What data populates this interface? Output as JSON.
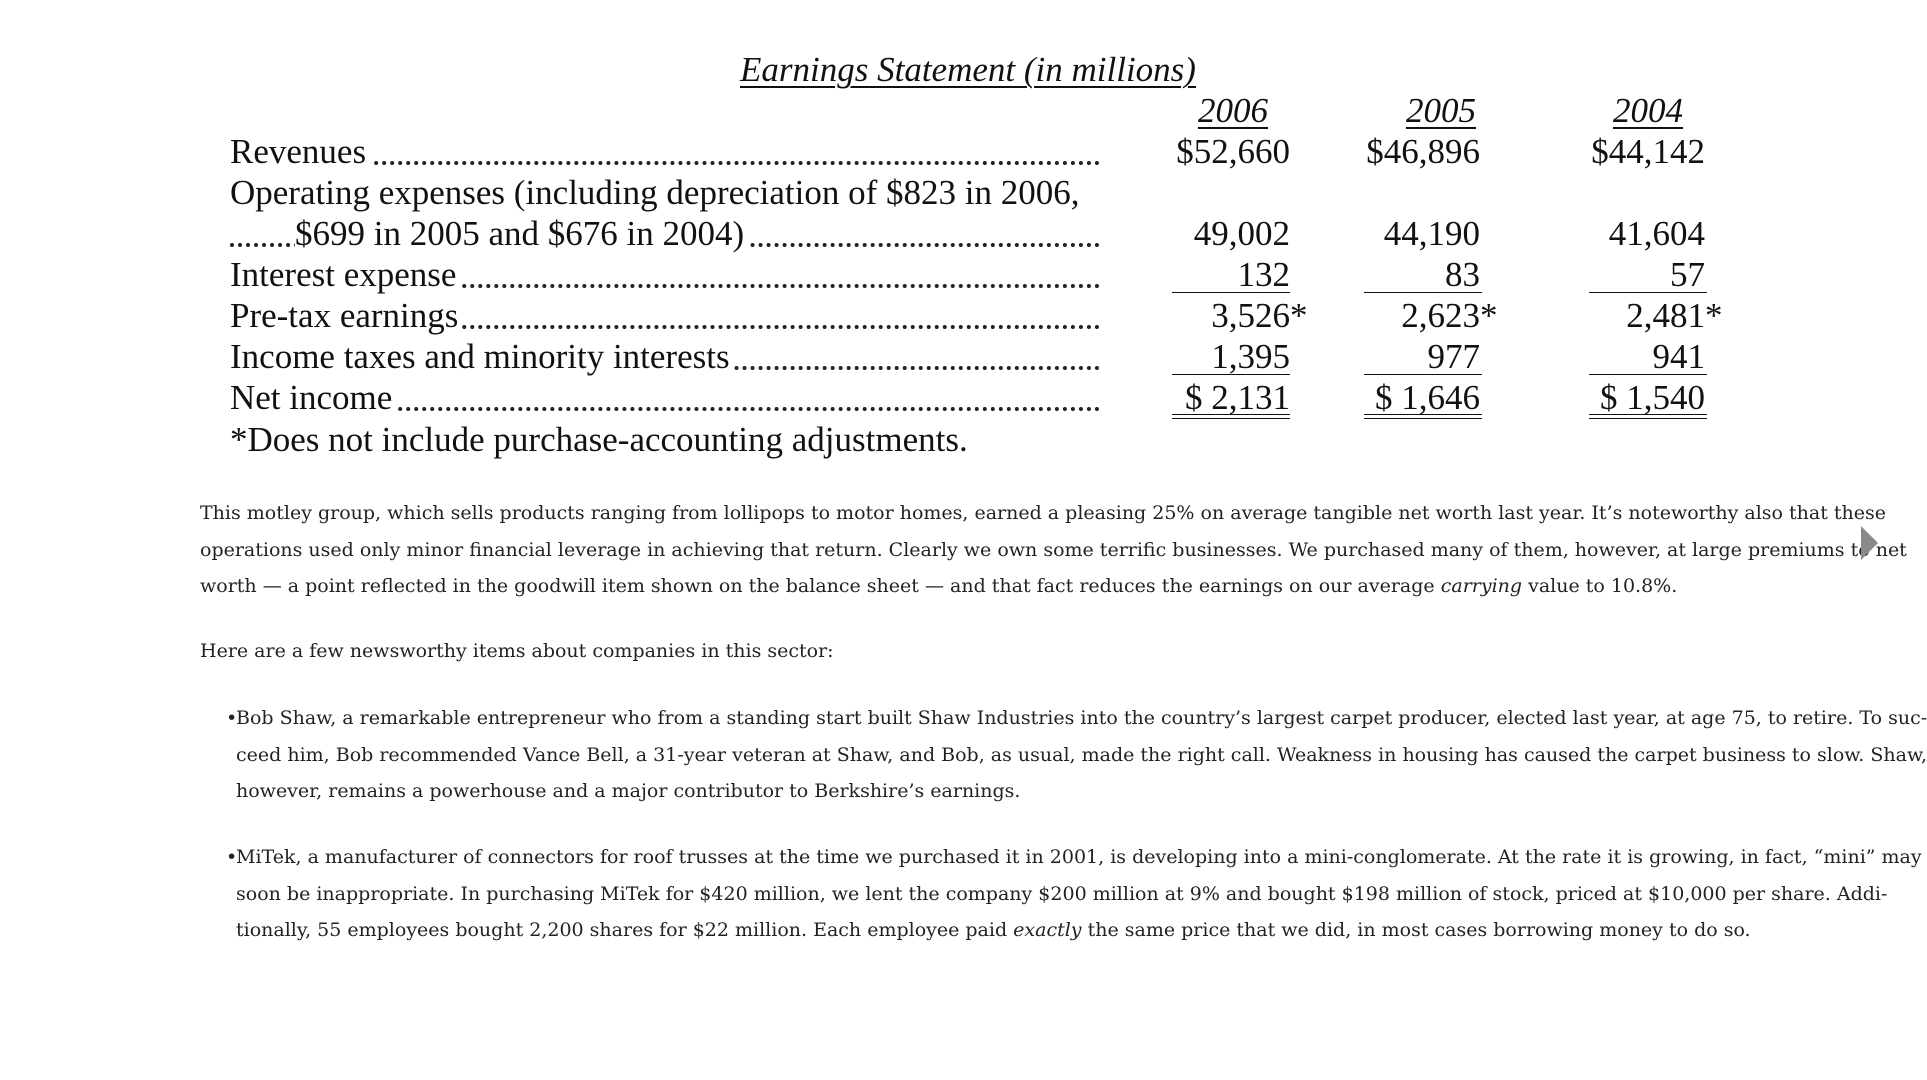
{
  "statement": {
    "title": "Earnings Statement (in millions)",
    "years": [
      "2006",
      "2005",
      "2004"
    ],
    "rows": [
      {
        "label": "Revenues",
        "values": [
          "$52,660",
          "$46,896",
          "$44,142"
        ]
      },
      {
        "label": "Operating expenses (including depreciation of $823 in 2006,"
      },
      {
        "label": "$699 in 2005 and $676 in 2004)",
        "values": [
          "49,002",
          "44,190",
          "41,604"
        ]
      },
      {
        "label": "Interest expense",
        "values": [
          "132",
          "83",
          "57"
        ]
      },
      {
        "label": "Pre-tax earnings",
        "values": [
          "3,526",
          "2,623",
          "2,481"
        ],
        "asterisk": "*"
      },
      {
        "label": "Income taxes and minority interests",
        "values": [
          "1,395",
          "977",
          "941"
        ]
      },
      {
        "label": "Net income",
        "values": [
          "$ 2,131",
          "$ 1,646",
          "$ 1,540"
        ]
      }
    ],
    "footnote": "*Does not include purchase-accounting adjustments."
  },
  "paragraph1": {
    "line1": "This motley group, which sells products ranging from lollipops to motor homes, earned a pleasing 25% on average tangible net worth last year. It’s noteworthy also that these",
    "line2": "operations used only minor financial leverage in achieving that return. Clearly we own some terrific businesses. We purchased many of them, however, at large premiums to net",
    "line3_a": "worth — a point reflected in the goodwill item shown on the balance sheet — and that fact reduces the earnings on our average ",
    "line3_em": "carrying",
    "line3_b": " value to 10.8%."
  },
  "paragraph2": "Here are a few newsworthy items about companies in this sector:",
  "bullet_mark": "•",
  "bullet1": {
    "line1": "Bob Shaw, a remarkable entrepreneur who from a standing start built Shaw Industries into the country’s largest carpet producer, elected last year, at age 75, to retire. To suc-",
    "line2": "ceed him, Bob recommended Vance Bell, a 31-year veteran at Shaw, and Bob, as usual, made the right call. Weakness in housing has caused the carpet business to slow. Shaw,",
    "line3": "however, remains a powerhouse and a major contributor to Berkshire’s earnings."
  },
  "bullet2": {
    "line1": "MiTek, a manufacturer of connectors for roof trusses at the time we purchased it in 2001, is developing into a mini-conglomerate. At the rate it is growing, in fact, “mini” may",
    "line2": "soon be inappropriate. In purchasing MiTek for $420 million, we lent the company $200 million at 9% and bought $198 million of stock, priced at $10,000 per share. Addi-",
    "line3_a": "tionally, 55 employees bought 2,200 shares for $22 million. Each employee paid ",
    "line3_em": "exactly",
    "line3_b": " the same price that we did, in most cases borrowing money to do so."
  },
  "nav": {
    "next_icon": "triangle-right"
  }
}
